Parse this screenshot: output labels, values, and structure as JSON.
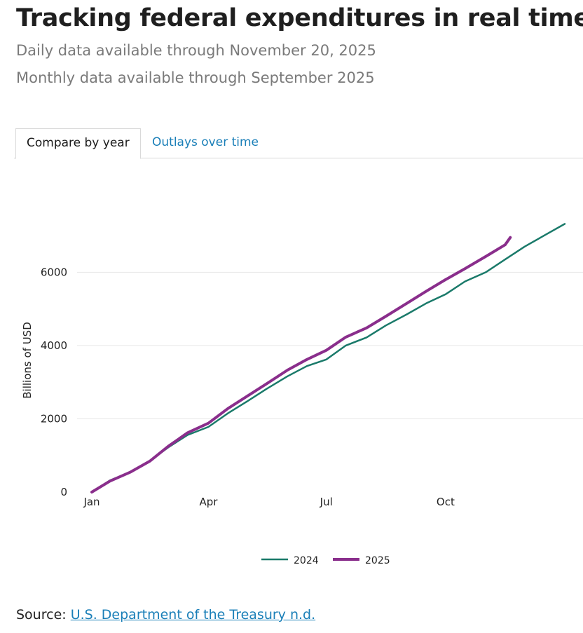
{
  "header": {
    "title": "Tracking federal expenditures in real time",
    "subtitle_daily": "Daily data available through November 20, 2025",
    "subtitle_monthly": "Monthly data available through September 2025"
  },
  "tabs": [
    {
      "label": "Compare by year",
      "active": true
    },
    {
      "label": "Outlays over time",
      "active": false
    }
  ],
  "colors": {
    "series_2024": "#1a7a6a",
    "series_2025": "#8a2e8c",
    "tab_link": "#1a7fb8",
    "gridline": "#e6e6e6"
  },
  "chart_data": {
    "type": "line",
    "title": "",
    "xlabel": "",
    "ylabel": "Billions of USD",
    "x_unit": "day of year",
    "xlim": [
      1,
      366
    ],
    "ylim": [
      0,
      7500
    ],
    "x_ticks": [
      {
        "value": 1,
        "label": "Jan"
      },
      {
        "value": 91,
        "label": "Apr"
      },
      {
        "value": 182,
        "label": "Jul"
      },
      {
        "value": 274,
        "label": "Oct"
      }
    ],
    "y_ticks": [
      0,
      2000,
      4000,
      6000
    ],
    "grid": "horizontal",
    "legend_position": "bottom-center",
    "series": [
      {
        "name": "2024",
        "x": [
          1,
          15,
          31,
          46,
          60,
          75,
          91,
          106,
          121,
          136,
          152,
          167,
          182,
          197,
          213,
          228,
          244,
          259,
          274,
          289,
          305,
          320,
          335,
          350,
          366
        ],
        "y": [
          0,
          320,
          550,
          860,
          1220,
          1560,
          1780,
          2150,
          2480,
          2820,
          3160,
          3440,
          3620,
          4000,
          4220,
          4550,
          4850,
          5150,
          5400,
          5750,
          6000,
          6350,
          6700,
          7000,
          7320
        ]
      },
      {
        "name": "2025",
        "x": [
          1,
          15,
          31,
          46,
          60,
          75,
          91,
          106,
          121,
          136,
          152,
          167,
          182,
          197,
          213,
          228,
          244,
          259,
          274,
          289,
          305,
          320,
          324
        ],
        "y": [
          0,
          300,
          550,
          850,
          1250,
          1620,
          1880,
          2280,
          2620,
          2960,
          3330,
          3620,
          3870,
          4230,
          4480,
          4800,
          5150,
          5480,
          5800,
          6100,
          6430,
          6750,
          6950
        ]
      }
    ]
  },
  "legend": {
    "item_2024": "2024",
    "item_2025": "2025"
  },
  "source": {
    "prefix": "Source:",
    "link_text": "U.S. Department of the Treasury n.d."
  }
}
